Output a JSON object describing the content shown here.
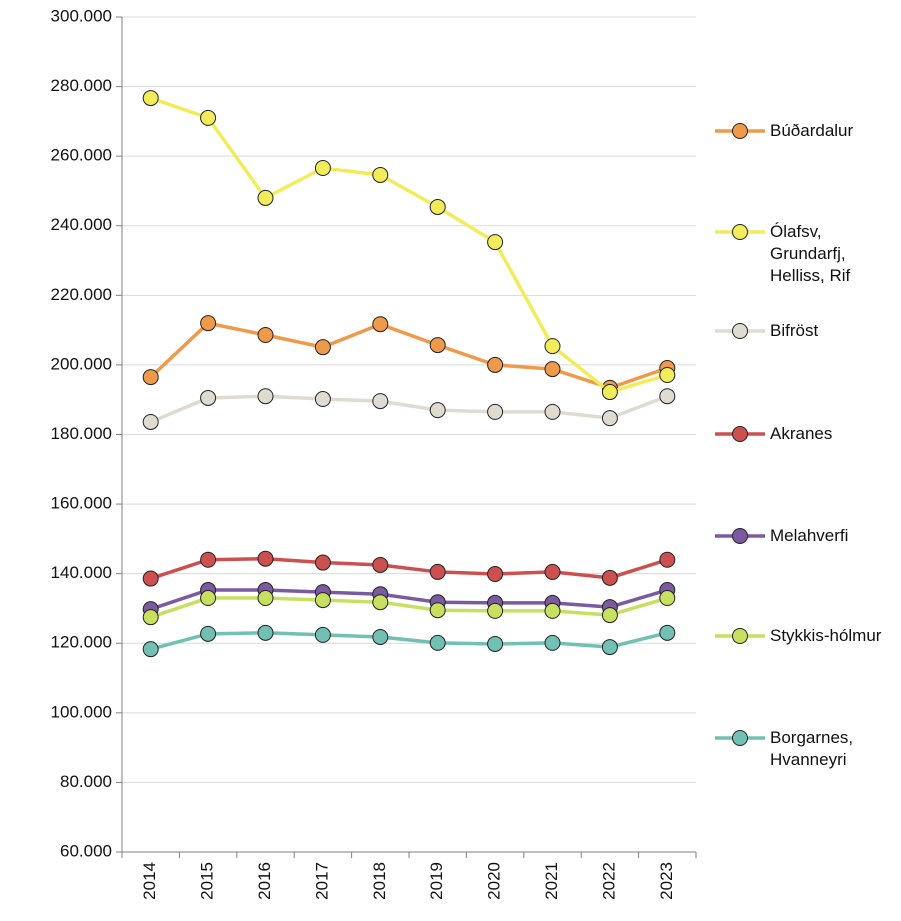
{
  "chart_data": {
    "type": "line",
    "categories": [
      "2014",
      "2015",
      "2016",
      "2017",
      "2018",
      "2019",
      "2020",
      "2021",
      "2022",
      "2023"
    ],
    "ylim": [
      60000,
      300000
    ],
    "yticks": [
      {
        "value": 60000,
        "label": "60.000"
      },
      {
        "value": 80000,
        "label": "80.000"
      },
      {
        "value": 100000,
        "label": "100.000"
      },
      {
        "value": 120000,
        "label": "120.000"
      },
      {
        "value": 140000,
        "label": "140.000"
      },
      {
        "value": 160000,
        "label": "160.000"
      },
      {
        "value": 180000,
        "label": "180.000"
      },
      {
        "value": 200000,
        "label": "200.000"
      },
      {
        "value": 220000,
        "label": "220.000"
      },
      {
        "value": 240000,
        "label": "240.000"
      },
      {
        "value": 260000,
        "label": "260.000"
      },
      {
        "value": 280000,
        "label": "280.000"
      },
      {
        "value": 300000,
        "label": "300.000"
      }
    ],
    "grid": true,
    "legend": "right",
    "series": [
      {
        "name": "Búðardalur",
        "color": "#ee9a4a",
        "values": [
          196500,
          212000,
          208600,
          205100,
          211700,
          205700,
          200000,
          198800,
          193400,
          199100
        ]
      },
      {
        "name": "Ólafsv, Grundarfj, Helliss, Rif",
        "color": "#f2ec5a",
        "values": [
          276700,
          271000,
          248000,
          256600,
          254600,
          245400,
          235300,
          205400,
          192200,
          197100
        ]
      },
      {
        "name": "Bifröst",
        "color": "#e0dbd0",
        "values": [
          183600,
          190500,
          191000,
          190200,
          189600,
          187000,
          186500,
          186500,
          184700,
          191000
        ]
      },
      {
        "name": "Akranes",
        "color": "#cc5050",
        "values": [
          138600,
          144000,
          144300,
          143200,
          142500,
          140500,
          139900,
          140500,
          138800,
          144000
        ]
      },
      {
        "name": "Melahverfi",
        "color": "#7b5aa0",
        "values": [
          129800,
          135300,
          135300,
          134700,
          134100,
          131800,
          131600,
          131600,
          130400,
          135300
        ]
      },
      {
        "name": "Stykkis-hólmur",
        "color": "#c8e060",
        "values": [
          127500,
          133000,
          133000,
          132400,
          131800,
          129500,
          129300,
          129300,
          128100,
          133000
        ]
      },
      {
        "name": "Borgarnes, Hvanneyri",
        "color": "#72c0b4",
        "values": [
          118300,
          122700,
          123000,
          122400,
          121800,
          120100,
          119800,
          120100,
          118900,
          123000
        ]
      }
    ]
  }
}
